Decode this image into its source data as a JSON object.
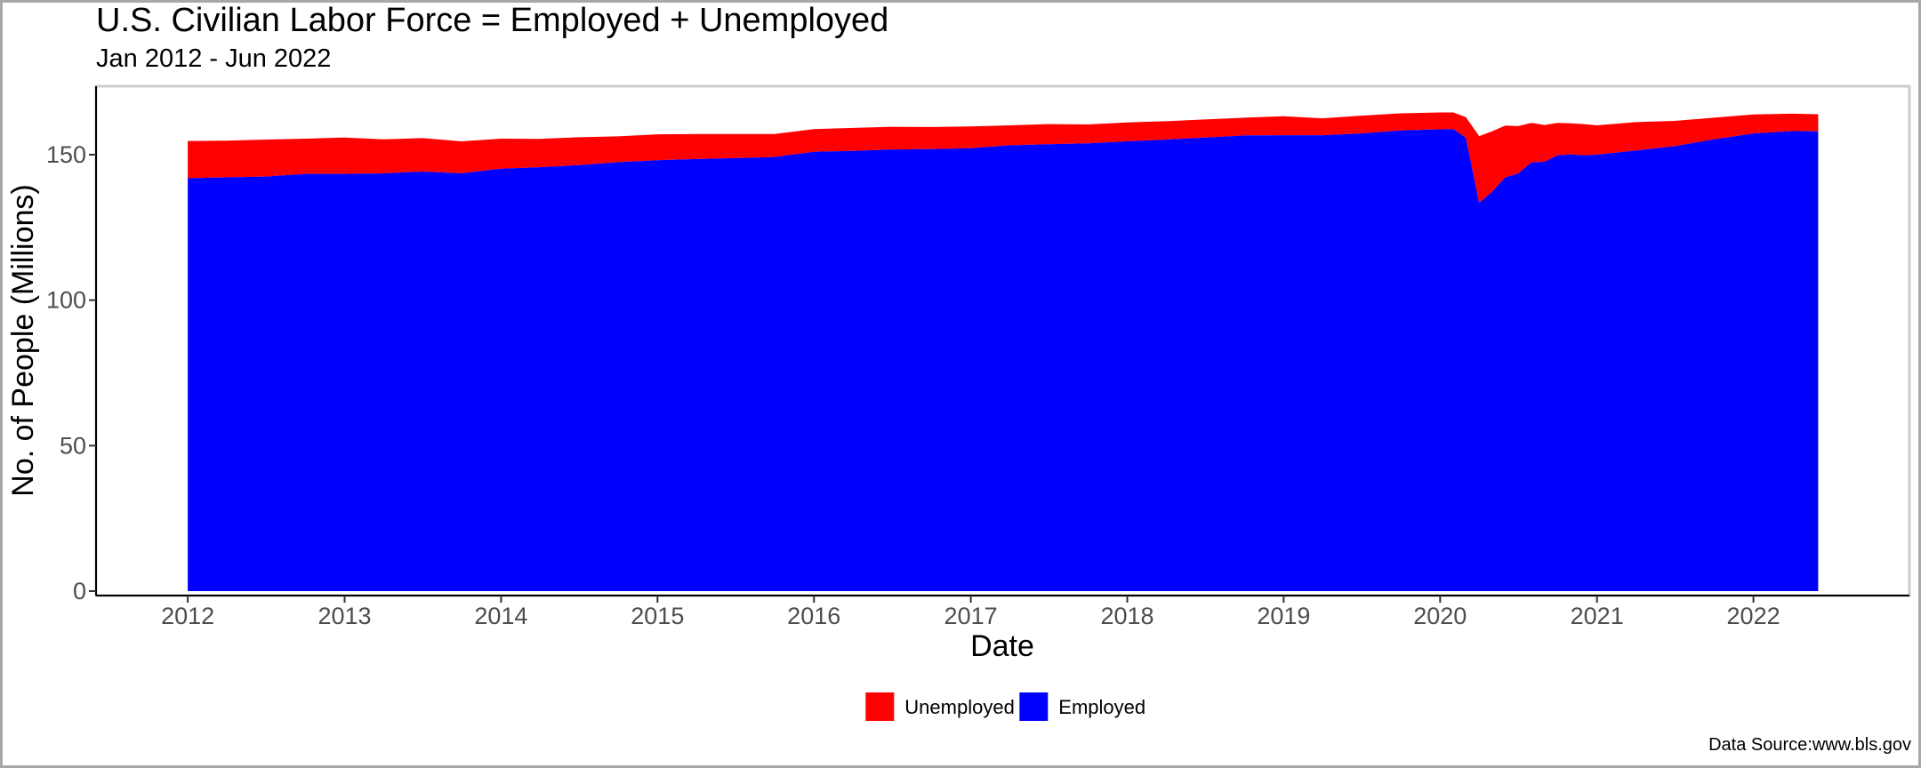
{
  "chart_data": {
    "type": "area",
    "title": "U.S. Civilian Labor Force = Employed + Unemployed",
    "subtitle": "Jan 2012 - Jun 2022",
    "xlabel": "Date",
    "ylabel": "No. of People (Millions)",
    "caption": "Data Source:www.bls.gov",
    "ylim": [
      0,
      172
    ],
    "xlim": [
      "2011-06-01",
      "2022-12-31"
    ],
    "yticks": [
      "0",
      "50",
      "100",
      "150"
    ],
    "xticks": [
      "2012",
      "2013",
      "2014",
      "2015",
      "2016",
      "2017",
      "2018",
      "2019",
      "2020",
      "2021",
      "2022"
    ],
    "stacked": true,
    "legend_position": "bottom",
    "grid": false,
    "x": [
      "2012-01",
      "2012-04",
      "2012-07",
      "2012-10",
      "2013-01",
      "2013-04",
      "2013-07",
      "2013-10",
      "2014-01",
      "2014-04",
      "2014-07",
      "2014-10",
      "2015-01",
      "2015-04",
      "2015-07",
      "2015-10",
      "2016-01",
      "2016-04",
      "2016-07",
      "2016-10",
      "2017-01",
      "2017-04",
      "2017-07",
      "2017-10",
      "2018-01",
      "2018-04",
      "2018-07",
      "2018-10",
      "2019-01",
      "2019-04",
      "2019-07",
      "2019-10",
      "2020-01",
      "2020-02",
      "2020-03",
      "2020-04",
      "2020-05",
      "2020-06",
      "2020-07",
      "2020-08",
      "2020-09",
      "2020-10",
      "2020-11",
      "2020-12",
      "2021-01",
      "2021-04",
      "2021-07",
      "2021-10",
      "2022-01",
      "2022-04",
      "2022-06"
    ],
    "series": [
      {
        "name": "Unemployed",
        "color": "#ff0000",
        "values": [
          12.8,
          12.6,
          12.7,
          12.1,
          12.5,
          11.7,
          11.5,
          11.0,
          10.3,
          9.7,
          9.6,
          8.9,
          8.9,
          8.6,
          8.3,
          7.9,
          7.8,
          7.9,
          7.8,
          7.6,
          7.5,
          6.9,
          6.9,
          6.5,
          6.5,
          6.3,
          6.2,
          6.1,
          6.5,
          5.8,
          6.1,
          5.9,
          5.8,
          5.7,
          7.1,
          23.0,
          20.8,
          17.8,
          16.3,
          13.6,
          12.6,
          11.1,
          10.7,
          10.7,
          10.1,
          9.8,
          8.7,
          7.4,
          6.5,
          6.0,
          5.9
        ]
      },
      {
        "name": "Employed",
        "color": "#0000ff",
        "values": [
          141.9,
          142.2,
          142.5,
          143.4,
          143.4,
          143.6,
          144.2,
          143.6,
          145.2,
          145.7,
          146.4,
          147.4,
          148.1,
          148.5,
          148.8,
          149.2,
          151.0,
          151.3,
          151.8,
          151.9,
          152.2,
          153.2,
          153.6,
          153.9,
          154.6,
          155.2,
          155.9,
          156.6,
          156.7,
          156.7,
          157.3,
          158.3,
          158.7,
          158.8,
          155.8,
          133.4,
          137.2,
          142.2,
          143.5,
          147.3,
          147.6,
          149.8,
          150.1,
          149.8,
          150.0,
          151.4,
          152.9,
          155.3,
          157.3,
          158.1,
          158.0
        ]
      }
    ]
  }
}
